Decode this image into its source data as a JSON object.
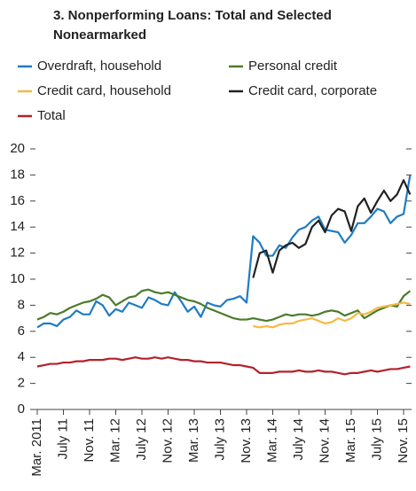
{
  "chart_data": {
    "type": "line",
    "title": "3. Nonperforming Loans: Total and Selected Nonearmarked",
    "categories": [
      "Mar. 2011",
      null,
      null,
      null,
      "July 11",
      null,
      null,
      null,
      "Nov. 11",
      null,
      null,
      null,
      "Mar. 12",
      null,
      null,
      null,
      "July 12",
      null,
      null,
      null,
      "Nov. 12",
      null,
      null,
      null,
      "Mar. 13",
      null,
      null,
      null,
      "July 13",
      null,
      null,
      null,
      "Nov. 13",
      null,
      null,
      null,
      "Mar. 14",
      null,
      null,
      null,
      "July 14",
      null,
      null,
      null,
      "Nov. 14",
      null,
      null,
      null,
      "Mar. 15",
      null,
      null,
      null,
      "July 15",
      null,
      null,
      null,
      "Nov. 15",
      null
    ],
    "series": [
      {
        "name": "Overdraft, household",
        "color": "#1f7cc4",
        "values": [
          6.3,
          6.6,
          6.6,
          6.4,
          6.9,
          7.1,
          7.6,
          7.3,
          7.3,
          8.3,
          8.0,
          7.2,
          7.7,
          7.5,
          8.2,
          8.0,
          7.8,
          8.6,
          8.4,
          8.1,
          8.0,
          9.0,
          8.3,
          7.5,
          7.9,
          7.1,
          8.2,
          8.0,
          7.9,
          8.4,
          8.5,
          8.7,
          8.2,
          13.3,
          12.8,
          11.8,
          11.8,
          12.6,
          12.4,
          13.2,
          13.8,
          14.0,
          14.5,
          14.8,
          13.8,
          13.7,
          13.6,
          12.8,
          13.4,
          14.3,
          14.3,
          14.8,
          15.4,
          15.2,
          14.3,
          14.8,
          15.0,
          18.0
        ]
      },
      {
        "name": "Personal credit",
        "color": "#4b7b2b",
        "values": [
          6.9,
          7.1,
          7.4,
          7.3,
          7.5,
          7.8,
          8.0,
          8.2,
          8.3,
          8.5,
          8.8,
          8.6,
          8.0,
          8.3,
          8.6,
          8.7,
          9.1,
          9.2,
          9.0,
          8.9,
          9.0,
          8.8,
          8.6,
          8.4,
          8.3,
          8.1,
          7.8,
          7.6,
          7.4,
          7.2,
          7.0,
          6.9,
          6.9,
          7.0,
          6.9,
          6.8,
          6.9,
          7.1,
          7.3,
          7.2,
          7.3,
          7.3,
          7.2,
          7.3,
          7.5,
          7.6,
          7.5,
          7.2,
          7.4,
          7.6,
          7.0,
          7.3,
          7.6,
          7.8,
          8.0,
          7.9,
          8.7,
          9.1
        ]
      },
      {
        "name": "Credit card, household",
        "color": "#f5b944",
        "values": [
          null,
          null,
          null,
          null,
          null,
          null,
          null,
          null,
          null,
          null,
          null,
          null,
          null,
          null,
          null,
          null,
          null,
          null,
          null,
          null,
          null,
          null,
          null,
          null,
          null,
          null,
          null,
          null,
          null,
          null,
          null,
          null,
          null,
          6.4,
          6.3,
          6.4,
          6.3,
          6.5,
          6.6,
          6.6,
          6.8,
          6.9,
          7.0,
          6.8,
          6.6,
          6.7,
          7.0,
          6.8,
          7.0,
          7.4,
          7.3,
          7.5,
          7.8,
          7.9,
          8.0,
          8.1,
          8.2,
          8.1
        ]
      },
      {
        "name": "Credit card, corporate",
        "color": "#222222",
        "values": [
          null,
          null,
          null,
          null,
          null,
          null,
          null,
          null,
          null,
          null,
          null,
          null,
          null,
          null,
          null,
          null,
          null,
          null,
          null,
          null,
          null,
          null,
          null,
          null,
          null,
          null,
          null,
          null,
          null,
          null,
          null,
          null,
          null,
          10.1,
          12.0,
          12.2,
          10.5,
          12.2,
          12.6,
          12.8,
          12.4,
          12.7,
          14.0,
          14.5,
          13.6,
          14.9,
          15.4,
          15.2,
          13.7,
          15.6,
          16.2,
          15.1,
          16.0,
          16.8,
          16.0,
          16.5,
          17.6,
          16.5
        ]
      },
      {
        "name": "Total",
        "color": "#b3222b",
        "values": [
          3.3,
          3.4,
          3.5,
          3.5,
          3.6,
          3.6,
          3.7,
          3.7,
          3.8,
          3.8,
          3.8,
          3.9,
          3.9,
          3.8,
          3.9,
          4.0,
          3.9,
          3.9,
          4.0,
          3.9,
          4.0,
          3.9,
          3.8,
          3.8,
          3.7,
          3.7,
          3.6,
          3.6,
          3.6,
          3.5,
          3.4,
          3.4,
          3.3,
          3.2,
          2.8,
          2.8,
          2.8,
          2.9,
          2.9,
          2.9,
          3.0,
          2.9,
          2.9,
          3.0,
          2.9,
          2.9,
          2.8,
          2.7,
          2.8,
          2.8,
          2.9,
          3.0,
          2.9,
          3.0,
          3.1,
          3.1,
          3.2,
          3.3
        ]
      }
    ],
    "ylim": [
      0,
      20
    ],
    "yticks": [
      0,
      2,
      4,
      6,
      8,
      10,
      12,
      14,
      16,
      18,
      20
    ],
    "grid": false
  }
}
